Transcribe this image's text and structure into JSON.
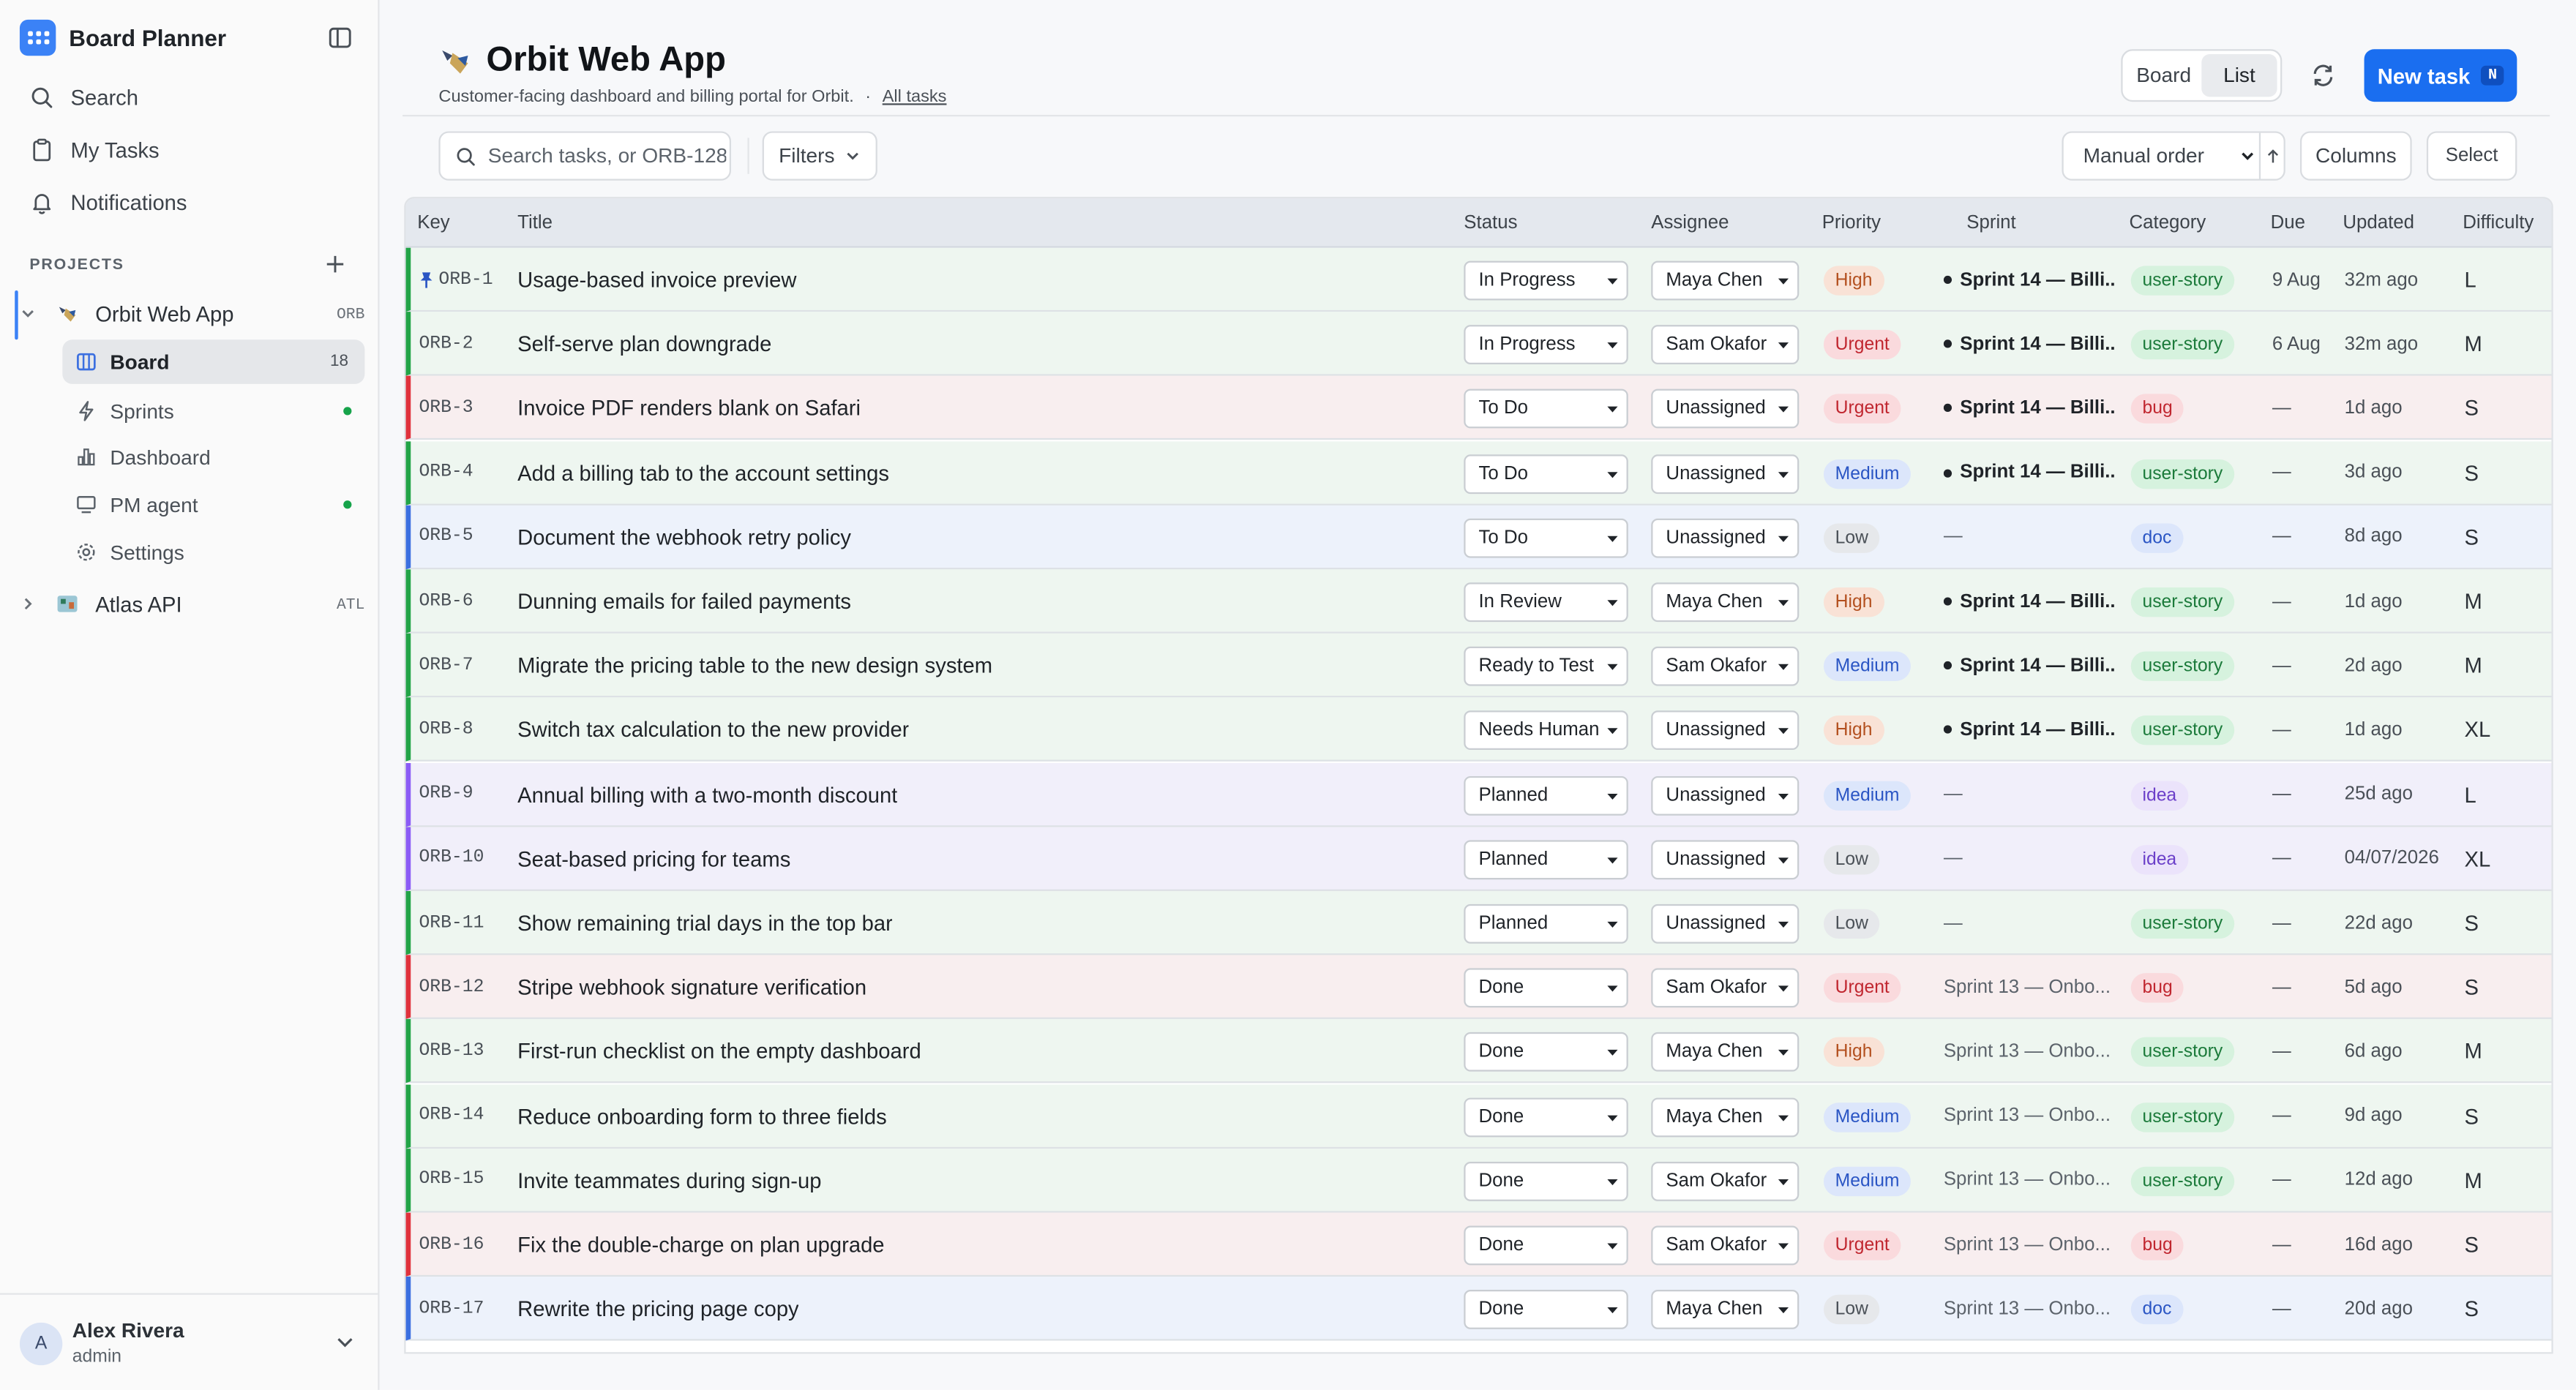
{
  "app": {
    "name": "Board Planner"
  },
  "nav": {
    "search": "Search",
    "my_tasks": "My Tasks",
    "notifications": "Notifications"
  },
  "projects_label": "PROJECTS",
  "projects": [
    {
      "name": "Orbit Web App",
      "key": "ORB"
    },
    {
      "name": "Atlas API",
      "key": "ATL"
    }
  ],
  "subnav": {
    "board": "Board",
    "board_count": "18",
    "sprints": "Sprints",
    "dashboard": "Dashboard",
    "pm_agent": "PM agent",
    "settings": "Settings"
  },
  "user": {
    "name": "Alex Rivera",
    "role": "admin",
    "initial": "A"
  },
  "page": {
    "title": "Orbit Web App",
    "description": "Customer-facing dashboard and billing portal for Orbit.",
    "sep": "·",
    "all_tasks_link": "All tasks"
  },
  "view_toggle": {
    "board": "Board",
    "list": "List"
  },
  "new_task": {
    "label": "New task",
    "shortcut": "N"
  },
  "toolbar": {
    "search_placeholder": "Search tasks, or ORB-128",
    "filters": "Filters",
    "order": "Manual order",
    "columns": "Columns",
    "select": "Select"
  },
  "columns": {
    "key": "Key",
    "title": "Title",
    "status": "Status",
    "assignee": "Assignee",
    "priority": "Priority",
    "sprint": "Sprint",
    "category": "Category",
    "due": "Due",
    "updated": "Updated",
    "difficulty": "Difficulty"
  },
  "colors": {
    "accent": "#1a6ef0",
    "row_green": "#eef6f0",
    "row_red": "#f8eeef",
    "row_blue": "#edf2fb",
    "row_purple": "#f1effa",
    "bar_green": "#22a447",
    "bar_red": "#e0323c",
    "bar_blue": "#3b6fe0",
    "bar_purple": "#8b5cf6"
  },
  "tasks": [
    {
      "key": "ORB-1",
      "pinned": true,
      "title": "Usage-based invoice preview",
      "status": "In Progress",
      "assignee": "Maya Chen",
      "priority": "High",
      "sprint": "Sprint 14 — Billi...",
      "sprint_active": true,
      "category": "user-story",
      "due": "9 Aug",
      "updated": "32m ago",
      "difficulty": "L",
      "tone": "green"
    },
    {
      "key": "ORB-2",
      "title": "Self-serve plan downgrade",
      "status": "In Progress",
      "assignee": "Sam Okafor",
      "priority": "Urgent",
      "sprint": "Sprint 14 — Billi...",
      "sprint_active": true,
      "category": "user-story",
      "due": "6 Aug",
      "updated": "32m ago",
      "difficulty": "M",
      "tone": "green"
    },
    {
      "key": "ORB-3",
      "title": "Invoice PDF renders blank on Safari",
      "status": "To Do",
      "assignee": "Unassigned",
      "priority": "Urgent",
      "sprint": "Sprint 14 — Billi...",
      "sprint_active": true,
      "category": "bug",
      "due": "—",
      "updated": "1d ago",
      "difficulty": "S",
      "tone": "red"
    },
    {
      "key": "ORB-4",
      "title": "Add a billing tab to the account settings",
      "status": "To Do",
      "assignee": "Unassigned",
      "priority": "Medium",
      "sprint": "Sprint 14 — Billi...",
      "sprint_active": true,
      "category": "user-story",
      "due": "—",
      "updated": "3d ago",
      "difficulty": "S",
      "tone": "green"
    },
    {
      "key": "ORB-5",
      "title": "Document the webhook retry policy",
      "status": "To Do",
      "assignee": "Unassigned",
      "priority": "Low",
      "sprint": "—",
      "sprint_active": false,
      "category": "doc",
      "due": "—",
      "updated": "8d ago",
      "difficulty": "S",
      "tone": "blue"
    },
    {
      "key": "ORB-6",
      "title": "Dunning emails for failed payments",
      "status": "In Review",
      "assignee": "Maya Chen",
      "priority": "High",
      "sprint": "Sprint 14 — Billi...",
      "sprint_active": true,
      "category": "user-story",
      "due": "—",
      "updated": "1d ago",
      "difficulty": "M",
      "tone": "green"
    },
    {
      "key": "ORB-7",
      "title": "Migrate the pricing table to the new design system",
      "status": "Ready to Test",
      "assignee": "Sam Okafor",
      "priority": "Medium",
      "sprint": "Sprint 14 — Billi...",
      "sprint_active": true,
      "category": "user-story",
      "due": "—",
      "updated": "2d ago",
      "difficulty": "M",
      "tone": "green"
    },
    {
      "key": "ORB-8",
      "title": "Switch tax calculation to the new provider",
      "status": "Needs Human",
      "assignee": "Unassigned",
      "priority": "High",
      "sprint": "Sprint 14 — Billi...",
      "sprint_active": true,
      "category": "user-story",
      "due": "—",
      "updated": "1d ago",
      "difficulty": "XL",
      "tone": "green"
    },
    {
      "key": "ORB-9",
      "title": "Annual billing with a two-month discount",
      "status": "Planned",
      "assignee": "Unassigned",
      "priority": "Medium",
      "sprint": "—",
      "sprint_active": false,
      "category": "idea",
      "due": "—",
      "updated": "25d ago",
      "difficulty": "L",
      "tone": "purple"
    },
    {
      "key": "ORB-10",
      "title": "Seat-based pricing for teams",
      "status": "Planned",
      "assignee": "Unassigned",
      "priority": "Low",
      "sprint": "—",
      "sprint_active": false,
      "category": "idea",
      "due": "—",
      "updated": "04/07/2026",
      "difficulty": "XL",
      "tone": "purple"
    },
    {
      "key": "ORB-11",
      "title": "Show remaining trial days in the top bar",
      "status": "Planned",
      "assignee": "Unassigned",
      "priority": "Low",
      "sprint": "—",
      "sprint_active": false,
      "category": "user-story",
      "due": "—",
      "updated": "22d ago",
      "difficulty": "S",
      "tone": "green"
    },
    {
      "key": "ORB-12",
      "title": "Stripe webhook signature verification",
      "status": "Done",
      "assignee": "Sam Okafor",
      "priority": "Urgent",
      "sprint": "Sprint 13 — Onbo...",
      "sprint_active": false,
      "category": "bug",
      "due": "—",
      "updated": "5d ago",
      "difficulty": "S",
      "tone": "red"
    },
    {
      "key": "ORB-13",
      "title": "First-run checklist on the empty dashboard",
      "status": "Done",
      "assignee": "Maya Chen",
      "priority": "High",
      "sprint": "Sprint 13 — Onbo...",
      "sprint_active": false,
      "category": "user-story",
      "due": "—",
      "updated": "6d ago",
      "difficulty": "M",
      "tone": "green"
    },
    {
      "key": "ORB-14",
      "title": "Reduce onboarding form to three fields",
      "status": "Done",
      "assignee": "Maya Chen",
      "priority": "Medium",
      "sprint": "Sprint 13 — Onbo...",
      "sprint_active": false,
      "category": "user-story",
      "due": "—",
      "updated": "9d ago",
      "difficulty": "S",
      "tone": "green"
    },
    {
      "key": "ORB-15",
      "title": "Invite teammates during sign-up",
      "status": "Done",
      "assignee": "Sam Okafor",
      "priority": "Medium",
      "sprint": "Sprint 13 — Onbo...",
      "sprint_active": false,
      "category": "user-story",
      "due": "—",
      "updated": "12d ago",
      "difficulty": "M",
      "tone": "green"
    },
    {
      "key": "ORB-16",
      "title": "Fix the double-charge on plan upgrade",
      "status": "Done",
      "assignee": "Sam Okafor",
      "priority": "Urgent",
      "sprint": "Sprint 13 — Onbo...",
      "sprint_active": false,
      "category": "bug",
      "due": "—",
      "updated": "16d ago",
      "difficulty": "S",
      "tone": "red"
    },
    {
      "key": "ORB-17",
      "title": "Rewrite the pricing page copy",
      "status": "Done",
      "assignee": "Maya Chen",
      "priority": "Low",
      "sprint": "Sprint 13 — Onbo...",
      "sprint_active": false,
      "category": "doc",
      "due": "—",
      "updated": "20d ago",
      "difficulty": "S",
      "tone": "blue"
    }
  ]
}
